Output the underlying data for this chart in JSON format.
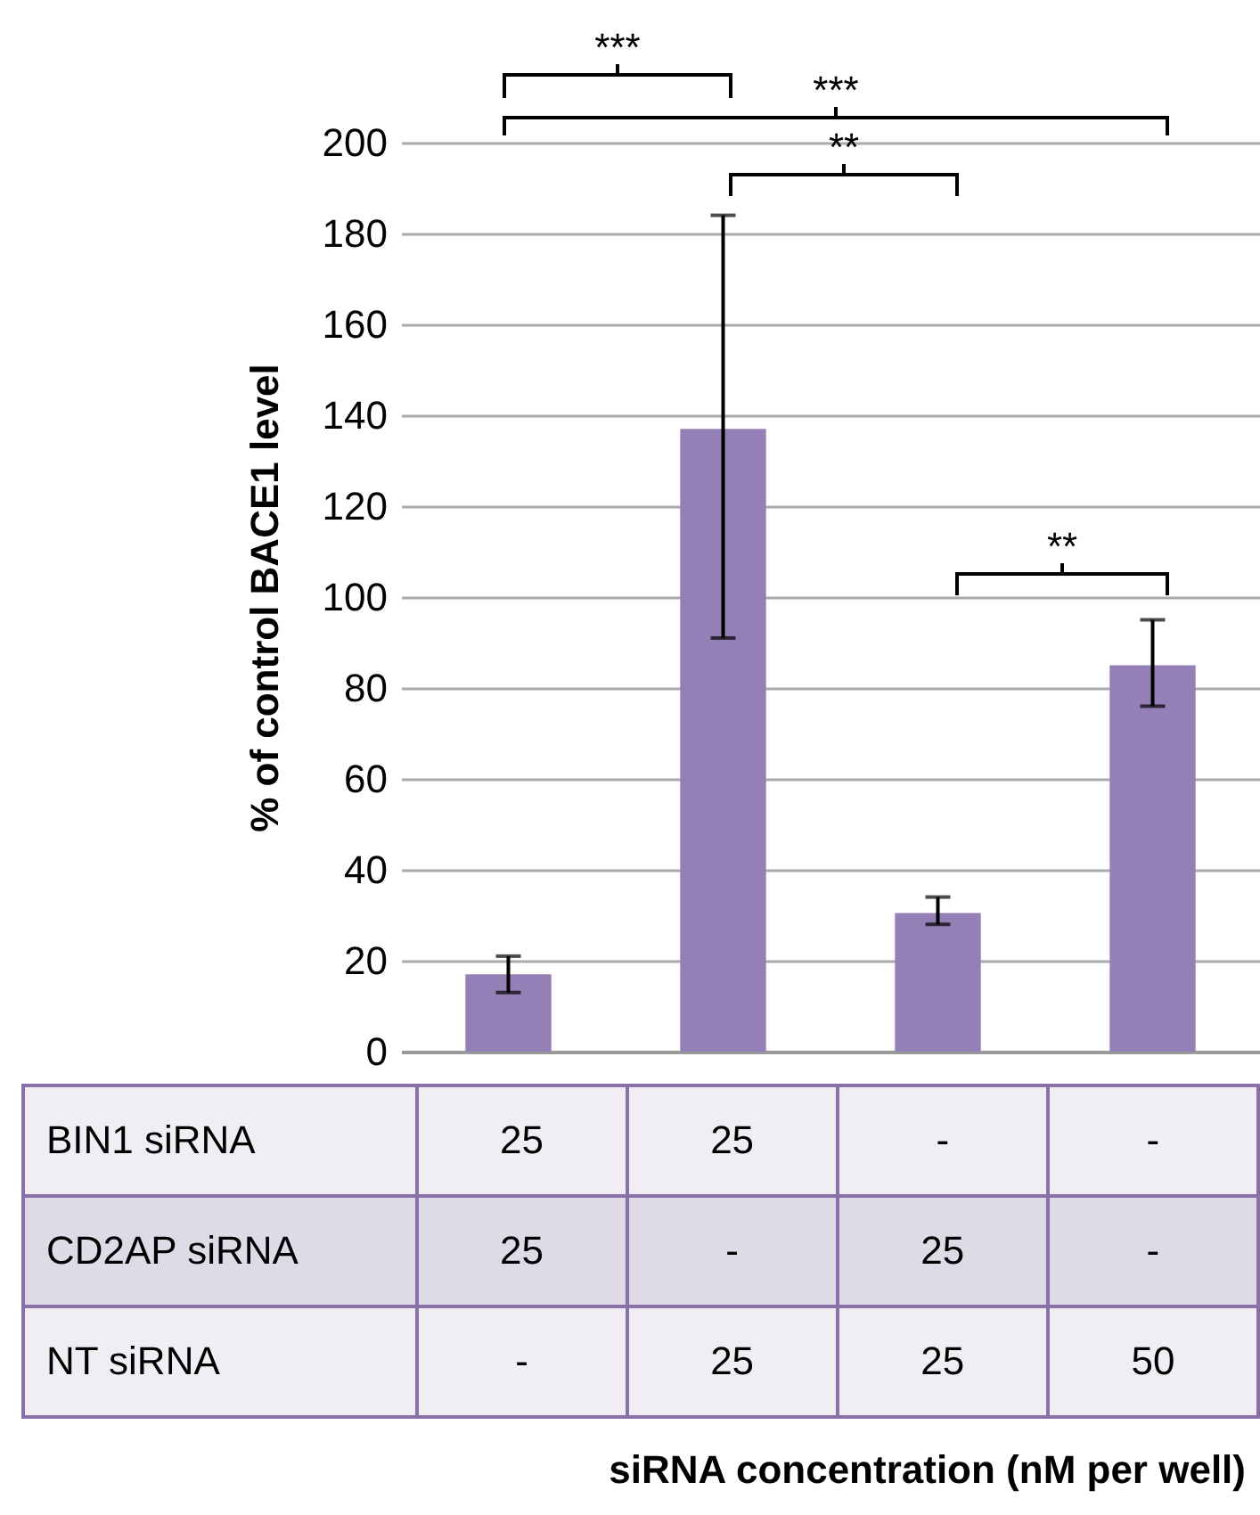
{
  "chart_data": {
    "type": "bar",
    "ylabel": "% of control BACE1 level",
    "categories": [
      null,
      null,
      null,
      null
    ],
    "values": [
      17,
      137,
      30.5,
      85
    ],
    "color": "#957fb7",
    "errors": [
      [
        13,
        21
      ],
      [
        91,
        184
      ],
      [
        28,
        34
      ],
      [
        76,
        95
      ]
    ],
    "ylim": [
      0,
      200
    ],
    "yticks": [
      0,
      20,
      40,
      60,
      80,
      100,
      120,
      140,
      160,
      180,
      200
    ],
    "grid": "y",
    "tick_labels": "y",
    "annotations": [
      "***",
      "***",
      "**",
      "**",
      "BIN1 siRNA",
      "25",
      "25",
      "-",
      "-",
      "CD2AP siRNA",
      "25",
      "-",
      "25",
      "-",
      "NT siRNA",
      "-",
      "25",
      "25",
      "50",
      "siRNA concentration (nM per well)"
    ]
  }
}
